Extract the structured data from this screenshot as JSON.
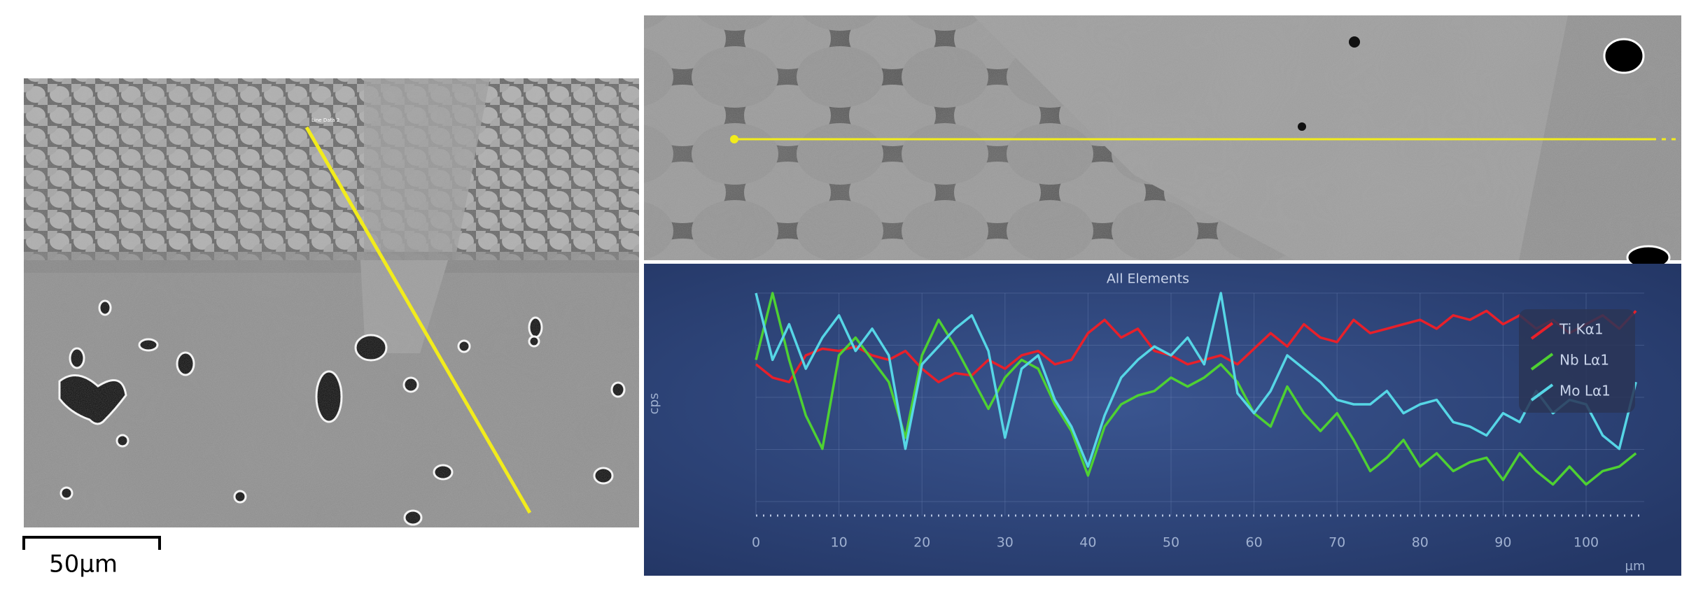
{
  "figure": {
    "scale_bar": "50µm",
    "line_label": "Line Data 2"
  },
  "chart_data": {
    "type": "line",
    "title": "All Elements",
    "ylabel": "cps",
    "xlabel": "µm",
    "x": [
      0,
      2,
      4,
      6,
      8,
      10,
      12,
      14,
      16,
      18,
      20,
      22,
      24,
      26,
      28,
      30,
      32,
      34,
      36,
      38,
      40,
      42,
      44,
      46,
      48,
      50,
      52,
      54,
      56,
      58,
      60,
      62,
      64,
      66,
      68,
      70,
      72,
      74,
      76,
      78,
      80,
      82,
      84,
      86,
      88,
      90,
      92,
      94,
      96,
      98,
      100,
      102,
      104,
      106
    ],
    "xlim": [
      0,
      107
    ],
    "xticks": [
      0,
      10,
      20,
      30,
      40,
      50,
      60,
      70,
      80,
      90,
      100
    ],
    "ylim": [
      0,
      100
    ],
    "grid": true,
    "legend": "upper right",
    "series": [
      {
        "name": "Ti Kα1",
        "color": "#e8202a",
        "values": [
          68,
          62,
          60,
          72,
          75,
          74,
          76,
          72,
          70,
          74,
          66,
          60,
          64,
          63,
          70,
          66,
          72,
          74,
          68,
          70,
          82,
          88,
          80,
          84,
          74,
          72,
          68,
          70,
          72,
          68,
          75,
          82,
          76,
          86,
          80,
          78,
          88,
          82,
          84,
          86,
          88,
          84,
          90,
          88,
          92,
          86,
          90,
          84,
          88,
          82,
          86,
          90,
          84,
          92
        ]
      },
      {
        "name": "Nb Lα1",
        "color": "#4ed132",
        "values": [
          70,
          100,
          70,
          45,
          30,
          72,
          80,
          70,
          60,
          35,
          72,
          88,
          76,
          62,
          48,
          62,
          70,
          66,
          50,
          38,
          18,
          40,
          50,
          54,
          56,
          62,
          58,
          62,
          68,
          60,
          46,
          40,
          58,
          46,
          38,
          46,
          34,
          20,
          26,
          34,
          22,
          28,
          20,
          24,
          26,
          16,
          28,
          20,
          14,
          22,
          14,
          20,
          22,
          28
        ]
      },
      {
        "name": "Mo Lα1",
        "color": "#56d6e6",
        "values": [
          100,
          70,
          86,
          66,
          80,
          90,
          74,
          84,
          72,
          30,
          68,
          76,
          84,
          90,
          74,
          35,
          66,
          72,
          52,
          40,
          22,
          45,
          62,
          70,
          76,
          72,
          80,
          68,
          100,
          55,
          46,
          56,
          72,
          66,
          60,
          52,
          50,
          50,
          56,
          46,
          50,
          52,
          42,
          40,
          36,
          46,
          42,
          56,
          46,
          52,
          50,
          36,
          30,
          60
        ]
      }
    ]
  }
}
